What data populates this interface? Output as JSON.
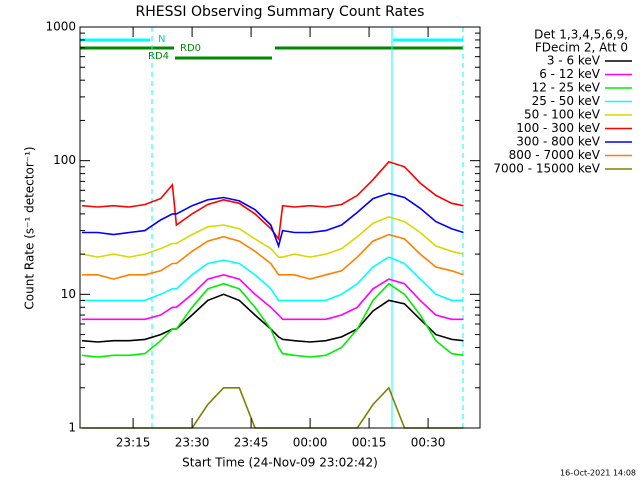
{
  "chart_data": {
    "type": "line",
    "title": "RHESSI Observing Summary Count Rates",
    "xlabel": "Start Time (24-Nov-09 23:02:42)",
    "ylabel": "Count Rate (s⁻¹ detector⁻¹)",
    "legend_title": [
      "Det 1,3,4,5,6,9,",
      "FDecim 2, Att 0"
    ],
    "annotations": [
      "N",
      "RD0",
      "RD4"
    ],
    "timestamp": "16-Oct-2021 14:08",
    "yscale": "log",
    "xlim": [
      1.5,
      103.2
    ],
    "xticks": [
      {
        "value": 15,
        "label": "23:15"
      },
      {
        "value": 30,
        "label": "23:30"
      },
      {
        "value": 45,
        "label": "23:45"
      },
      {
        "value": 60,
        "label": "00:00"
      },
      {
        "value": 75,
        "label": "00:15"
      },
      {
        "value": 90,
        "label": "00:30"
      }
    ],
    "ylim": [
      1,
      1000
    ],
    "yticks": [
      1,
      10,
      100,
      1000
    ],
    "x": [
      2,
      6,
      10,
      14,
      18,
      22,
      25,
      26,
      30,
      34,
      38,
      42,
      46,
      50,
      52,
      53,
      56,
      60,
      64,
      68,
      72,
      76,
      80,
      84,
      88,
      92,
      96,
      99
    ],
    "series": [
      {
        "name": "3 - 6 keV",
        "color": "#000000",
        "values": [
          4.5,
          4.4,
          4.5,
          4.5,
          4.6,
          5,
          5.5,
          5.5,
          7,
          9,
          10,
          9,
          7,
          5.5,
          4.8,
          4.6,
          4.5,
          4.4,
          4.5,
          4.8,
          5.5,
          7.5,
          9,
          8.5,
          6.5,
          5,
          4.6,
          4.5
        ]
      },
      {
        "name": "6 - 12 keV",
        "color": "#ff00ff",
        "values": [
          6.5,
          6.5,
          6.5,
          6.5,
          6.5,
          7,
          8,
          8,
          10,
          13,
          14,
          13,
          10,
          8,
          7,
          6.5,
          6.5,
          6.5,
          6.5,
          7,
          8,
          11,
          13,
          12,
          9,
          7,
          6.5,
          6.5
        ]
      },
      {
        "name": "12 - 25 keV",
        "color": "#00ee00",
        "values": [
          3.5,
          3.4,
          3.5,
          3.5,
          3.6,
          4.5,
          5.5,
          5.5,
          8,
          11,
          12,
          11,
          8,
          5.5,
          4,
          3.6,
          3.5,
          3.4,
          3.5,
          4,
          5.5,
          9,
          12,
          10,
          7,
          4.5,
          3.6,
          3.5
        ]
      },
      {
        "name": "25 - 50 keV",
        "color": "#00ffff",
        "values": [
          9,
          9,
          9,
          9,
          9,
          10,
          11,
          11,
          14,
          17,
          18,
          17,
          14,
          11,
          9,
          9,
          9,
          9,
          9,
          10,
          12,
          16,
          19,
          17,
          13,
          10,
          9,
          9
        ]
      },
      {
        "name": "50 - 100 keV",
        "color": "#d8d800",
        "values": [
          20,
          19,
          20,
          19,
          20,
          22,
          24,
          24,
          28,
          32,
          33,
          31,
          26,
          22,
          19,
          19,
          20,
          19,
          20,
          22,
          27,
          34,
          38,
          35,
          29,
          23,
          21,
          20
        ]
      },
      {
        "name": "100 - 300 keV",
        "color": "#ff0000",
        "values": [
          46,
          45,
          46,
          45,
          47,
          52,
          66,
          33,
          40,
          47,
          51,
          48,
          40,
          31,
          26,
          46,
          45,
          46,
          45,
          47,
          55,
          72,
          98,
          90,
          68,
          55,
          48,
          46
        ]
      },
      {
        "name": "300 - 800 keV",
        "color": "#0000ff",
        "values": [
          29,
          29,
          28,
          29,
          30,
          36,
          40,
          40,
          46,
          51,
          53,
          50,
          43,
          33,
          23,
          30,
          29,
          29,
          30,
          33,
          41,
          52,
          57,
          53,
          44,
          35,
          31,
          29
        ]
      },
      {
        "name": "800 - 7000 keV",
        "color": "#ff8000",
        "values": [
          14,
          14,
          13,
          14,
          14,
          15,
          17,
          17,
          21,
          25,
          27,
          25,
          21,
          17,
          14,
          14,
          14,
          13,
          14,
          15,
          19,
          25,
          28,
          26,
          20,
          16,
          15,
          14
        ]
      },
      {
        "name": "7000 - 15000 keV",
        "color": "#808000",
        "values": [
          1,
          1,
          1,
          1,
          1,
          1,
          1,
          1,
          1,
          1.5,
          2,
          2,
          1,
          1,
          1,
          1,
          1,
          1,
          1,
          1,
          1,
          1.5,
          2,
          1,
          1,
          1,
          1,
          1
        ]
      }
    ]
  }
}
